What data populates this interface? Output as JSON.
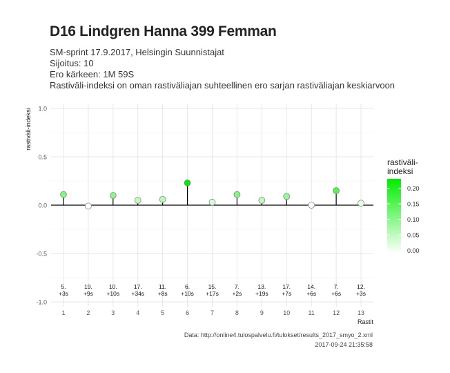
{
  "title": "D16 Lindgren Hanna 399 Femman",
  "subtitle_lines": [
    "SM-sprint 17.9.2017, Helsingin Suunnistajat",
    "Sijoitus: 10",
    "Ero kärkeen: 1M 59S",
    "Rastiväli-indeksi on oman rastiväliajan suhteellinen ero sarjan rastiväliajan keskiarvoon"
  ],
  "caption": {
    "source": "Data: http://online4.tulospalvelu.fi/tulokset/results_2017_smyo_2.xml",
    "timestamp": "2017-09-24 21:35:58"
  },
  "colors": {
    "low": "#ffffff",
    "high": "#00ee00",
    "baseline": "#000000",
    "grid": "#e5e5e5"
  },
  "chart_data": {
    "type": "scatter",
    "style": "lollipop",
    "xlabel": "Rastit",
    "ylabel": "rastiväli-indeksi",
    "x": [
      1,
      2,
      3,
      4,
      5,
      6,
      7,
      8,
      9,
      10,
      11,
      12,
      13
    ],
    "values": [
      0.11,
      -0.01,
      0.1,
      0.05,
      0.06,
      0.23,
      0.03,
      0.11,
      0.05,
      0.09,
      0.0,
      0.15,
      0.02
    ],
    "point_labels": [
      [
        "5.",
        "+3s"
      ],
      [
        "19.",
        "+9s"
      ],
      [
        "10.",
        "+10s"
      ],
      [
        "17.",
        "+34s"
      ],
      [
        "11.",
        "+8s"
      ],
      [
        "6.",
        "+10s"
      ],
      [
        "15.",
        "+17s"
      ],
      [
        "7.",
        "+2s"
      ],
      [
        "13.",
        "+19s"
      ],
      [
        "17.",
        "+7s"
      ],
      [
        "14.",
        "+6s"
      ],
      [
        "7.",
        "+6s"
      ],
      [
        "12.",
        "+3s"
      ]
    ],
    "label_y": -0.9,
    "ylim": [
      -1.05,
      1.05
    ],
    "xlim": [
      0.5,
      13.5
    ],
    "yticks": [
      1.0,
      0.5,
      0.0,
      -0.5,
      -1.0
    ],
    "ytick_labels": [
      "1.0",
      "0.5",
      "0.0",
      "-0.5",
      "-1.0"
    ],
    "grid": true,
    "legend": {
      "title": "rastiväli-\nindeksi",
      "placement": "right",
      "range": [
        -0.01,
        0.23
      ],
      "ticks": [
        0.2,
        0.15,
        0.1,
        0.05,
        0.0
      ],
      "tick_labels": [
        "0.20",
        "0.15",
        "0.10",
        "0.05",
        "0.00"
      ]
    }
  }
}
